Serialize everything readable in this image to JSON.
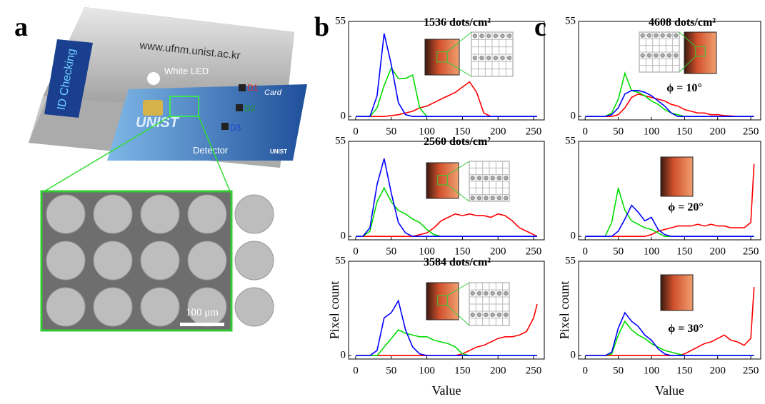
{
  "panel_labels": [
    "a",
    "b",
    "c"
  ],
  "panel_a": {
    "url": "www.ufnm.unist.ac.kr",
    "screen": "ID Checking",
    "led": "White LED",
    "detector": "Detector",
    "d1": "D1",
    "d2": "D2",
    "d3": "D3",
    "card": "Card",
    "logo": "UNIST",
    "scale_bar": "100 μm"
  },
  "chart_data": [
    {
      "type": "line",
      "annotations": [
        "1536 dots/cm²"
      ],
      "x": [
        0,
        10,
        20,
        30,
        40,
        50,
        60,
        70,
        80,
        90,
        100,
        110,
        120,
        130,
        140,
        150,
        160,
        170,
        180,
        190,
        200,
        210,
        220,
        230,
        240,
        250,
        255
      ],
      "xlim": [
        -10,
        265
      ],
      "xticks": [
        0,
        50,
        100,
        150,
        200,
        250
      ],
      "ylim": [
        -2,
        55
      ],
      "yticks": [
        0,
        55
      ],
      "series": [
        {
          "color": "#ff0000",
          "values": [
            0,
            0,
            0,
            0,
            0,
            0.5,
            1,
            2,
            3,
            5,
            6,
            8,
            10,
            12,
            14,
            17,
            20,
            14,
            2,
            0,
            0,
            0,
            0,
            0,
            0,
            0,
            0
          ]
        },
        {
          "color": "#00dd00",
          "values": [
            0,
            0,
            0,
            5,
            18,
            28,
            22,
            22,
            24,
            5,
            0,
            0,
            0,
            0,
            0,
            0,
            0,
            0,
            0,
            0,
            0,
            0,
            0,
            0,
            0,
            0,
            0
          ]
        },
        {
          "color": "#0000ff",
          "values": [
            0,
            0,
            0,
            12,
            48,
            30,
            8,
            1,
            0,
            0,
            0,
            0,
            0,
            0,
            0,
            0,
            0,
            0,
            0,
            0,
            0,
            0,
            0,
            0,
            0,
            0,
            0
          ]
        }
      ]
    },
    {
      "type": "line",
      "annotations": [
        "2560 dots/cm²"
      ],
      "x": [
        0,
        10,
        20,
        30,
        40,
        50,
        60,
        70,
        80,
        90,
        100,
        110,
        120,
        130,
        140,
        150,
        160,
        170,
        180,
        190,
        200,
        210,
        220,
        230,
        240,
        250,
        255
      ],
      "xlim": [
        -10,
        265
      ],
      "xticks": [
        0,
        50,
        100,
        150,
        200,
        250
      ],
      "ylim": [
        -2,
        55
      ],
      "yticks": [
        0,
        55
      ],
      "series": [
        {
          "color": "#ff0000",
          "values": [
            0,
            0,
            0,
            0,
            0,
            0,
            0,
            0,
            0,
            1,
            2,
            5,
            9,
            11,
            13,
            12,
            13,
            12,
            12,
            11,
            13,
            12,
            9,
            5,
            3,
            1,
            0
          ]
        },
        {
          "color": "#00dd00",
          "values": [
            0,
            0,
            3,
            20,
            28,
            20,
            15,
            13,
            10,
            8,
            4,
            1,
            0,
            0,
            0,
            0,
            0,
            0,
            0,
            0,
            0,
            0,
            0,
            0,
            0,
            0,
            0
          ]
        },
        {
          "color": "#0000ff",
          "values": [
            0,
            0,
            5,
            30,
            45,
            25,
            8,
            2,
            0,
            0,
            0,
            0,
            0,
            0,
            0,
            0,
            0,
            0,
            0,
            0,
            0,
            0,
            0,
            0,
            0,
            0,
            0
          ]
        }
      ]
    },
    {
      "type": "line",
      "annotations": [
        "3584 dots/cm²"
      ],
      "xlabel": "Value",
      "ylabel": "Pixel count",
      "x": [
        0,
        10,
        20,
        30,
        40,
        50,
        60,
        70,
        80,
        90,
        100,
        110,
        120,
        130,
        140,
        150,
        160,
        170,
        180,
        190,
        200,
        210,
        220,
        230,
        240,
        250,
        255
      ],
      "xlim": [
        -10,
        265
      ],
      "xticks": [
        0,
        50,
        100,
        150,
        200,
        250
      ],
      "ylim": [
        -2,
        55
      ],
      "yticks": [
        0,
        55
      ],
      "series": [
        {
          "color": "#ff0000",
          "values": [
            0,
            0,
            0,
            0,
            0,
            0,
            0,
            0,
            0,
            0,
            0,
            0,
            0,
            0,
            0,
            1,
            3,
            5,
            6,
            8,
            10,
            11,
            11,
            12,
            14,
            22,
            30
          ]
        },
        {
          "color": "#00dd00",
          "values": [
            0,
            0,
            0,
            0,
            5,
            10,
            15,
            13,
            12,
            11,
            11,
            9,
            8,
            7,
            5,
            1,
            0,
            0,
            0,
            0,
            0,
            0,
            0,
            0,
            0,
            0,
            0
          ]
        },
        {
          "color": "#0000ff",
          "values": [
            0,
            0,
            0,
            3,
            22,
            25,
            32,
            15,
            5,
            1,
            0,
            0,
            0,
            0,
            0,
            0,
            0,
            0,
            0,
            0,
            0,
            0,
            0,
            0,
            0,
            0,
            0
          ]
        }
      ]
    },
    {
      "type": "line",
      "annotations": [
        "4608 dots/cm²",
        "ϕ = 10°"
      ],
      "x": [
        0,
        10,
        20,
        30,
        40,
        50,
        60,
        70,
        80,
        90,
        100,
        110,
        120,
        130,
        140,
        150,
        160,
        170,
        180,
        190,
        200,
        210,
        220,
        230,
        240,
        250,
        255
      ],
      "xlim": [
        -10,
        265
      ],
      "xticks": [
        0,
        50,
        100,
        150,
        200,
        250
      ],
      "ylim": [
        -2,
        55
      ],
      "yticks": [
        0,
        55
      ],
      "series": [
        {
          "color": "#ff0000",
          "values": [
            0,
            0,
            0,
            0,
            0,
            1,
            5,
            11,
            13,
            12,
            11,
            10,
            9,
            7,
            6,
            4,
            3,
            2,
            2,
            1,
            1,
            0.5,
            0.3,
            0,
            0,
            0,
            0
          ]
        },
        {
          "color": "#00dd00",
          "values": [
            0,
            0,
            0,
            0,
            2,
            10,
            25,
            15,
            14,
            12,
            9,
            7,
            4,
            2,
            1,
            0,
            0,
            0,
            0,
            0,
            0,
            0,
            0,
            0,
            0,
            0,
            0
          ]
        },
        {
          "color": "#0000ff",
          "values": [
            0,
            0,
            0,
            0,
            1,
            5,
            13,
            15,
            15,
            14,
            12,
            9,
            6,
            2,
            0,
            0,
            0,
            0,
            0,
            0,
            0,
            0,
            0,
            0,
            0,
            0,
            0
          ]
        }
      ]
    },
    {
      "type": "line",
      "annotations": [
        "ϕ = 20°"
      ],
      "x": [
        0,
        10,
        20,
        30,
        40,
        50,
        60,
        70,
        80,
        90,
        100,
        110,
        120,
        130,
        140,
        150,
        160,
        170,
        180,
        190,
        200,
        210,
        220,
        230,
        240,
        250,
        255
      ],
      "xlim": [
        -10,
        265
      ],
      "xticks": [
        0,
        50,
        100,
        150,
        200,
        250
      ],
      "ylim": [
        -2,
        55
      ],
      "yticks": [
        0,
        55
      ],
      "series": [
        {
          "color": "#ff0000",
          "values": [
            0,
            0,
            0,
            0,
            0,
            0,
            0,
            0,
            0,
            0,
            1,
            3,
            4,
            5,
            6,
            6,
            6,
            7,
            6,
            7,
            6,
            6,
            5,
            5,
            5,
            8,
            42
          ]
        },
        {
          "color": "#00dd00",
          "values": [
            0,
            0,
            0,
            0,
            8,
            28,
            15,
            9,
            7,
            5,
            4,
            2,
            0,
            0,
            0,
            0,
            0,
            0,
            0,
            0,
            0,
            0,
            0,
            0,
            0,
            0,
            0
          ]
        },
        {
          "color": "#0000ff",
          "values": [
            0,
            0,
            0,
            0,
            0,
            3,
            10,
            18,
            14,
            9,
            11,
            4,
            1,
            0,
            0,
            0,
            0,
            0,
            0,
            0,
            0,
            0,
            0,
            0,
            0,
            0,
            0
          ]
        }
      ]
    },
    {
      "type": "line",
      "annotations": [
        "ϕ = 30°"
      ],
      "xlabel": "Value",
      "ylabel": "Pixel count",
      "x": [
        0,
        10,
        20,
        30,
        40,
        50,
        60,
        70,
        80,
        90,
        100,
        110,
        120,
        130,
        140,
        150,
        160,
        170,
        180,
        190,
        200,
        210,
        220,
        230,
        240,
        250,
        255
      ],
      "xlim": [
        -10,
        265
      ],
      "xticks": [
        0,
        50,
        100,
        150,
        200,
        250
      ],
      "ylim": [
        -2,
        55
      ],
      "yticks": [
        0,
        55
      ],
      "series": [
        {
          "color": "#ff0000",
          "values": [
            0,
            0,
            0,
            0,
            0,
            0,
            0,
            0,
            0,
            0,
            0,
            0,
            0,
            0,
            0,
            1,
            3,
            5,
            7,
            8,
            10,
            12,
            9,
            8,
            6,
            10,
            40
          ]
        },
        {
          "color": "#00dd00",
          "values": [
            0,
            0,
            0,
            0,
            1,
            12,
            20,
            15,
            12,
            10,
            7,
            5,
            3,
            2,
            1,
            0,
            0,
            0,
            0,
            0,
            0,
            0,
            0,
            0,
            0,
            0,
            0
          ]
        },
        {
          "color": "#0000ff",
          "values": [
            0,
            0,
            0,
            0,
            2,
            16,
            25,
            20,
            17,
            12,
            9,
            4,
            1,
            0,
            0,
            0,
            0,
            0,
            0,
            0,
            0,
            0,
            0,
            0,
            0,
            0,
            0
          ]
        }
      ]
    }
  ]
}
